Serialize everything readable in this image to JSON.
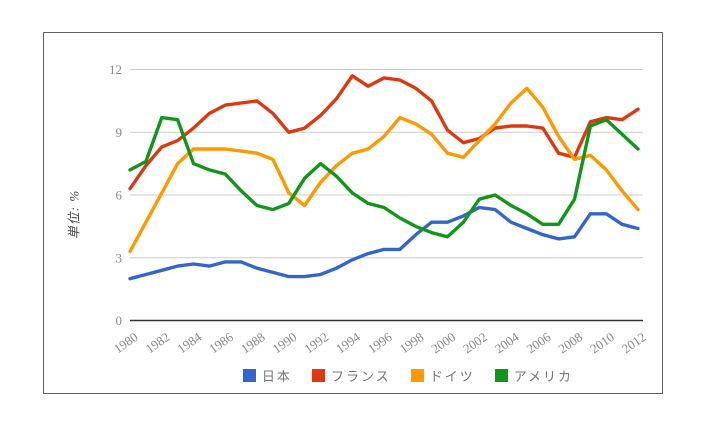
{
  "window": {
    "background_color": "#ffffff",
    "frame_border_color": "#5f5f5f"
  },
  "axis_style": {
    "tick_label_color": "#8a8a8a",
    "grid_color": "#cccccc",
    "baseline_color": "#333333",
    "x_label_rotation_deg": -35
  },
  "chart_data": {
    "type": "line",
    "title": "",
    "ylabel": "単位: %",
    "xlabel": "",
    "grid": true,
    "legend_position": "bottom",
    "ylim": [
      0,
      12
    ],
    "y_ticks": [
      0,
      3,
      6,
      9,
      12
    ],
    "x": [
      1980,
      1981,
      1982,
      1983,
      1984,
      1985,
      1986,
      1987,
      1988,
      1989,
      1990,
      1991,
      1992,
      1993,
      1994,
      1995,
      1996,
      1997,
      1998,
      1999,
      2000,
      2001,
      2002,
      2003,
      2004,
      2005,
      2006,
      2007,
      2008,
      2009,
      2010,
      2011,
      2012
    ],
    "x_tick_labels": [
      "1980",
      "1982",
      "1984",
      "1986",
      "1988",
      "1990",
      "1992",
      "1994",
      "1996",
      "1998",
      "2000",
      "2002",
      "2004",
      "2006",
      "2008",
      "2010",
      "2012"
    ],
    "series": [
      {
        "key": "japan",
        "name": "日本",
        "color": "#3366CC",
        "values": [
          2.0,
          2.2,
          2.4,
          2.6,
          2.7,
          2.6,
          2.8,
          2.8,
          2.5,
          2.3,
          2.1,
          2.1,
          2.2,
          2.5,
          2.9,
          3.2,
          3.4,
          3.4,
          4.1,
          4.7,
          4.7,
          5.0,
          5.4,
          5.3,
          4.7,
          4.4,
          4.1,
          3.9,
          4.0,
          5.1,
          5.1,
          4.6,
          4.4
        ]
      },
      {
        "key": "france",
        "name": "フランス",
        "color": "#DC3912",
        "values": [
          6.3,
          7.4,
          8.3,
          8.6,
          9.2,
          9.9,
          10.3,
          10.4,
          10.5,
          9.9,
          9.0,
          9.2,
          9.8,
          10.6,
          11.7,
          11.2,
          11.6,
          11.5,
          11.1,
          10.5,
          9.1,
          8.5,
          8.7,
          9.2,
          9.3,
          9.3,
          9.2,
          8.0,
          7.8,
          9.5,
          9.7,
          9.6,
          10.1
        ]
      },
      {
        "key": "germany",
        "name": "ドイツ",
        "color": "#FF9900",
        "values": [
          3.3,
          4.7,
          6.1,
          7.5,
          8.2,
          8.2,
          8.2,
          8.1,
          8.0,
          7.7,
          6.1,
          5.5,
          6.6,
          7.4,
          8.0,
          8.2,
          8.8,
          9.7,
          9.4,
          8.9,
          8.0,
          7.8,
          8.6,
          9.4,
          10.4,
          11.1,
          10.2,
          8.8,
          7.7,
          7.9,
          7.2,
          6.2,
          5.3
        ]
      },
      {
        "key": "usa",
        "name": "アメリカ",
        "color": "#109618",
        "values": [
          7.2,
          7.6,
          9.7,
          9.6,
          7.5,
          7.2,
          7.0,
          6.2,
          5.5,
          5.3,
          5.6,
          6.8,
          7.5,
          6.9,
          6.1,
          5.6,
          5.4,
          4.9,
          4.5,
          4.2,
          4.0,
          4.7,
          5.8,
          6.0,
          5.5,
          5.1,
          4.6,
          4.6,
          5.8,
          9.3,
          9.6,
          8.9,
          8.2
        ]
      }
    ]
  }
}
